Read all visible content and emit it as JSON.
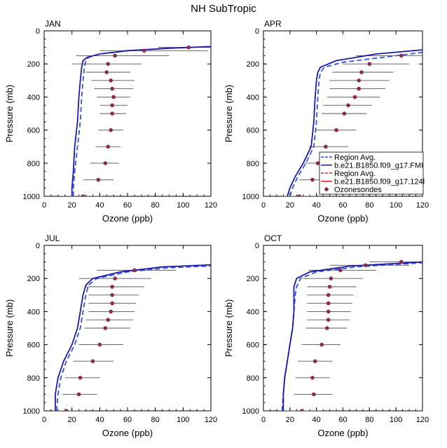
{
  "figure_title": "NH SubTropic",
  "colors": {
    "dashed_line": "#3355dd",
    "solid_line": "#1f18a8",
    "red_line": "#dd2222",
    "sonde": "#8a2b4f",
    "whisker": "#555555"
  },
  "legend": {
    "entries": [
      {
        "label": "Region Avg.",
        "style": "dashed-blue"
      },
      {
        "label": "b.e21.B1850.f09_g17.FMI",
        "style": "solid-blue"
      },
      {
        "label": "Region Avg.",
        "style": "dashed-red"
      },
      {
        "label": "b.e21.B1850.f09_g17.124l",
        "style": "solid-red"
      },
      {
        "label": "Ozonesondes",
        "style": "marker"
      }
    ]
  },
  "chart_data": [
    {
      "type": "line",
      "panel": "JAN",
      "title": "JAN",
      "xlabel": "Ozone (ppb)",
      "ylabel": "Pressure (mb)",
      "xlim": [
        0,
        120
      ],
      "ylim": [
        1000,
        0
      ],
      "xticks": [
        "0",
        "20",
        "40",
        "60",
        "80",
        "100",
        "120"
      ],
      "yticks": [
        "0",
        "200",
        "400",
        "600",
        "800",
        "1000"
      ],
      "series": [
        {
          "name": "Region Avg.",
          "style": "dashed",
          "x": [
            21,
            21,
            22,
            24,
            26,
            27,
            28,
            29,
            30,
            32,
            40,
            60,
            90,
            120
          ],
          "y": [
            1000,
            950,
            850,
            700,
            550,
            400,
            300,
            220,
            180,
            160,
            140,
            120,
            105,
            95
          ]
        },
        {
          "name": "b.e21.B1850.f09_g17.FMI",
          "style": "solid",
          "x": [
            20,
            20,
            21,
            22,
            24,
            25,
            26,
            27,
            28,
            31,
            40,
            60,
            90,
            120
          ],
          "y": [
            1000,
            950,
            850,
            700,
            550,
            400,
            300,
            220,
            180,
            160,
            140,
            120,
            105,
            95
          ]
        }
      ],
      "sondes": {
        "name": "Ozonesondes",
        "pressure": [
          100,
          120,
          150,
          200,
          250,
          300,
          350,
          400,
          450,
          500,
          600,
          700,
          800,
          900,
          1000
        ],
        "mean": [
          104,
          72,
          51,
          46,
          45,
          48,
          49,
          50,
          49,
          49,
          48,
          46,
          44,
          39,
          28
        ],
        "low": [
          82,
          40,
          23,
          20,
          30,
          34,
          36,
          38,
          40,
          40,
          39,
          37,
          33,
          28,
          12
        ],
        "high": [
          120,
          118,
          90,
          70,
          62,
          65,
          64,
          62,
          60,
          59,
          57,
          55,
          54,
          50,
          42
        ]
      }
    },
    {
      "type": "line",
      "panel": "APR",
      "title": "APR",
      "xlabel": "Ozone (ppb)",
      "ylabel": "Pressure (mb)",
      "xlim": [
        0,
        120
      ],
      "ylim": [
        1000,
        0
      ],
      "xticks": [
        "0",
        "20",
        "40",
        "60",
        "80",
        "100",
        "120"
      ],
      "yticks": [
        "0",
        "200",
        "400",
        "600",
        "800",
        "1000"
      ],
      "series": [
        {
          "name": "Region Avg.",
          "style": "dashed",
          "x": [
            20,
            22,
            26,
            32,
            38,
            40,
            41,
            42,
            43,
            46,
            60,
            90,
            120
          ],
          "y": [
            1000,
            950,
            880,
            800,
            700,
            550,
            400,
            300,
            250,
            220,
            190,
            160,
            130
          ]
        },
        {
          "name": "b.e21.B1850.f09_g17.FMI",
          "style": "solid",
          "x": [
            18,
            20,
            24,
            30,
            36,
            38,
            39,
            40,
            41,
            43,
            55,
            85,
            120
          ],
          "y": [
            1000,
            950,
            880,
            800,
            700,
            550,
            400,
            300,
            250,
            220,
            180,
            140,
            115
          ]
        }
      ],
      "sondes": {
        "name": "Ozonesondes",
        "pressure": [
          150,
          200,
          250,
          300,
          350,
          400,
          450,
          500,
          600,
          700,
          800,
          900,
          1000
        ],
        "mean": [
          104,
          80,
          74,
          72,
          72,
          69,
          64,
          61,
          55,
          47,
          41,
          37,
          27
        ],
        "low": [
          70,
          60,
          52,
          50,
          50,
          48,
          45,
          44,
          39,
          34,
          31,
          27,
          14
        ],
        "high": [
          120,
          110,
          98,
          95,
          92,
          88,
          82,
          78,
          70,
          64,
          58,
          52,
          40
        ]
      }
    },
    {
      "type": "line",
      "panel": "JUL",
      "title": "JUL",
      "xlabel": "Ozone (ppb)",
      "ylabel": "Pressure (mb)",
      "xlim": [
        0,
        120
      ],
      "ylim": [
        1000,
        0
      ],
      "xticks": [
        "0",
        "20",
        "40",
        "60",
        "80",
        "100",
        "120"
      ],
      "yticks": [
        "0",
        "200",
        "400",
        "600",
        "800",
        "1000"
      ],
      "series": [
        {
          "name": "Region Avg.",
          "style": "dashed",
          "x": [
            9,
            10,
            12,
            16,
            22,
            26,
            28,
            30,
            32,
            38,
            60,
            90,
            120
          ],
          "y": [
            1000,
            900,
            800,
            700,
            600,
            500,
            400,
            300,
            240,
            200,
            160,
            135,
            125
          ]
        },
        {
          "name": "b.e21.B1850.f09_g17.FMI",
          "style": "solid",
          "x": [
            8,
            8,
            10,
            14,
            20,
            24,
            26,
            28,
            30,
            35,
            55,
            85,
            120
          ],
          "y": [
            1000,
            900,
            800,
            700,
            600,
            500,
            400,
            300,
            240,
            200,
            160,
            130,
            118
          ]
        }
      ],
      "sondes": {
        "name": "Ozonesondes",
        "pressure": [
          150,
          200,
          250,
          300,
          350,
          400,
          450,
          500,
          600,
          700,
          800,
          900,
          1000
        ],
        "mean": [
          65,
          51,
          49,
          49,
          49,
          48,
          46,
          44,
          40,
          35,
          26,
          25,
          16
        ],
        "low": [
          38,
          25,
          30,
          32,
          32,
          32,
          30,
          29,
          25,
          21,
          15,
          13,
          6
        ],
        "high": [
          95,
          77,
          72,
          68,
          66,
          65,
          64,
          62,
          57,
          50,
          40,
          38,
          29
        ]
      }
    },
    {
      "type": "line",
      "panel": "OCT",
      "title": "OCT",
      "xlabel": "Ozone (ppb)",
      "ylabel": "Pressure (mb)",
      "xlim": [
        0,
        120
      ],
      "ylim": [
        1000,
        0
      ],
      "xticks": [
        "0",
        "20",
        "40",
        "60",
        "80",
        "100",
        "120"
      ],
      "yticks": [
        "0",
        "200",
        "400",
        "600",
        "800",
        "1000"
      ],
      "series": [
        {
          "name": "Region Avg.",
          "style": "dashed",
          "x": [
            14,
            15,
            16,
            18,
            20,
            22,
            23,
            24,
            25,
            28,
            40,
            70,
            120
          ],
          "y": [
            1000,
            900,
            800,
            700,
            600,
            500,
            400,
            300,
            250,
            200,
            160,
            130,
            105
          ]
        },
        {
          "name": "b.e21.B1850.f09_g17.FMI",
          "style": "solid",
          "x": [
            15,
            15,
            16,
            18,
            20,
            22,
            23,
            23,
            23,
            25,
            35,
            65,
            120
          ],
          "y": [
            1000,
            900,
            800,
            700,
            600,
            500,
            400,
            300,
            250,
            200,
            160,
            125,
            100
          ]
        }
      ],
      "sondes": {
        "name": "Ozonesondes",
        "pressure": [
          100,
          120,
          150,
          200,
          250,
          300,
          350,
          400,
          450,
          500,
          600,
          700,
          800,
          900,
          1000
        ],
        "mean": [
          104,
          77,
          58,
          51,
          50,
          49,
          49,
          49,
          49,
          48,
          44,
          39,
          37,
          38,
          29
        ],
        "low": [
          80,
          50,
          34,
          30,
          33,
          33,
          33,
          33,
          33,
          32,
          29,
          26,
          24,
          23,
          12
        ],
        "high": [
          120,
          110,
          85,
          75,
          70,
          68,
          67,
          66,
          65,
          63,
          58,
          52,
          50,
          52,
          45
        ]
      }
    }
  ]
}
